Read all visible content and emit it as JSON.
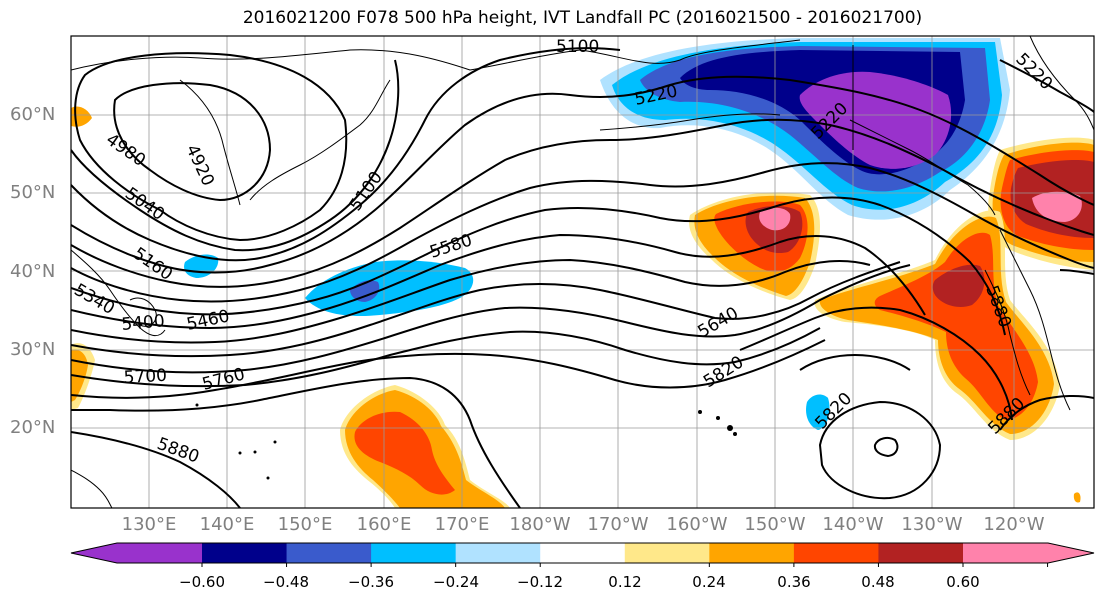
{
  "title": "2016021200 F078 500 hPa height, IVT Landfall PC (2016021500 - 2016021700)",
  "lat_labels": [
    "60°N",
    "50°N",
    "40°N",
    "30°N",
    "20°N"
  ],
  "lon_labels": [
    "130°E",
    "140°E",
    "150°E",
    "160°E",
    "170°E",
    "180°W",
    "170°W",
    "160°W",
    "150°W",
    "140°W",
    "130°W",
    "120°W"
  ],
  "contour_labels": [
    "5100",
    "5220",
    "5220",
    "5220",
    "4980",
    "4920",
    "5040",
    "5100",
    "5160",
    "5340",
    "5400",
    "5460",
    "5580",
    "5640",
    "5700",
    "5760",
    "5820",
    "5820",
    "5880",
    "5880",
    "5880"
  ],
  "colorbar": {
    "colors": [
      "#9932cc",
      "#00008b",
      "#3a5bcc",
      "#00bfff",
      "#b0e2ff",
      "#ffffff",
      "#ffe88a",
      "#ffa500",
      "#ff4500",
      "#b22222",
      "#ff82ab"
    ],
    "ticks": [
      "−0.60",
      "−0.48",
      "−0.36",
      "−0.24",
      "−0.12",
      "0.12",
      "0.24",
      "0.36",
      "0.48",
      "0.60"
    ]
  }
}
